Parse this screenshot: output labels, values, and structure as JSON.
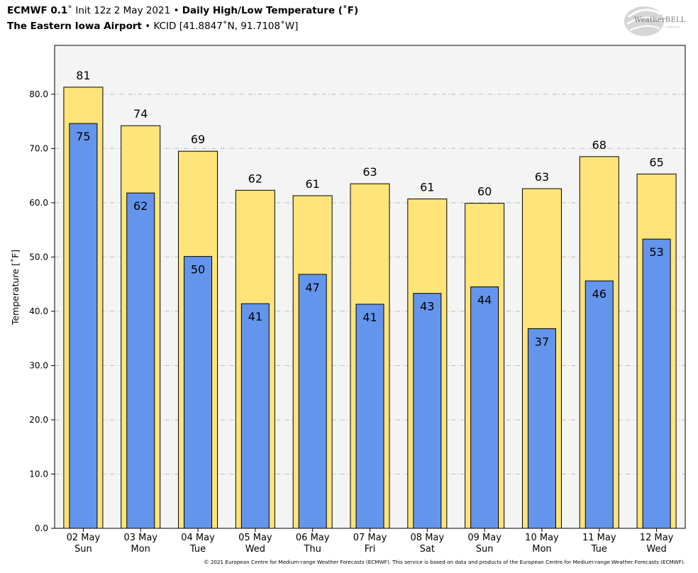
{
  "header": {
    "model": "ECMWF 0.1",
    "deg": "˚",
    "init": " Init 12z 2 May 2021 • ",
    "product": "Daily High/Low Temperature (˚F)",
    "station_name": "The Eastern Iowa Airport",
    "station_info": " • KCID [41.8847˚N, 91.7108˚W]"
  },
  "logo": {
    "text": "WeatherBELL",
    "sub": "Analytics LLC"
  },
  "footer": {
    "copyright": "© 2021 European Centre for Medium-range Weather Forecasts (ECMWF). This service is based on data and products of the European Centre for Medium-range Weather Forecasts (ECMWF)."
  },
  "colors": {
    "high": "#FFE47A",
    "low": "#6495ED",
    "plot_bg": "#F4F4F4",
    "grid": "#BBBBBB"
  },
  "chart_data": {
    "type": "bar",
    "ylabel": "Temperature [˚F]",
    "ylim": [
      0,
      89
    ],
    "yticks": [
      0,
      10,
      20,
      30,
      40,
      50,
      60,
      70,
      80
    ],
    "grid": true,
    "categories": [
      {
        "date": "02 May",
        "day": "Sun"
      },
      {
        "date": "03 May",
        "day": "Mon"
      },
      {
        "date": "04 May",
        "day": "Tue"
      },
      {
        "date": "05 May",
        "day": "Wed"
      },
      {
        "date": "06 May",
        "day": "Thu"
      },
      {
        "date": "07 May",
        "day": "Fri"
      },
      {
        "date": "08 May",
        "day": "Sat"
      },
      {
        "date": "09 May",
        "day": "Sun"
      },
      {
        "date": "10 May",
        "day": "Mon"
      },
      {
        "date": "11 May",
        "day": "Tue"
      },
      {
        "date": "12 May",
        "day": "Wed"
      }
    ],
    "series": [
      {
        "values": [
          81.3,
          74.2,
          69.5,
          62.3,
          61.3,
          63.5,
          60.7,
          59.9,
          62.6,
          68.5,
          65.3
        ]
      },
      {
        "values": [
          74.6,
          61.8,
          50.1,
          41.4,
          46.8,
          41.3,
          43.3,
          44.5,
          36.8,
          45.6,
          53.3
        ]
      }
    ],
    "high_labels": [
      "81",
      "74",
      "69",
      "62",
      "61",
      "63",
      "61",
      "60",
      "63",
      "68",
      "65"
    ],
    "low_labels": [
      "75",
      "62",
      "50",
      "41",
      "47",
      "41",
      "43",
      "44",
      "37",
      "46",
      "53"
    ]
  }
}
